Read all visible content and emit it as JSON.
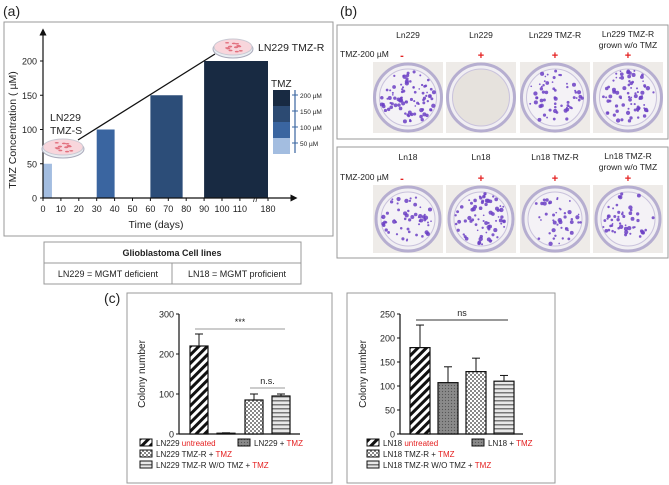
{
  "panel_labels": {
    "a": "(a)",
    "b": "(b)",
    "c": "(c)"
  },
  "chart_data": [
    {
      "type": "bar",
      "title": "",
      "xlabel": "Time (days)",
      "ylabel": "TMZ Concentration ( µM)",
      "x_ticks": [
        "0",
        "10",
        "20",
        "30",
        "40",
        "50",
        "60",
        "70",
        "80",
        "90",
        "100",
        "110",
        "180"
      ],
      "y_ticks": [
        "0",
        "50",
        "100",
        "150",
        "200"
      ],
      "ylim": [
        0,
        220
      ],
      "bars": [
        {
          "x_start": 0,
          "x_end": 5,
          "value": 50,
          "color": "#a3bde0"
        },
        {
          "x_start": 30,
          "x_end": 40,
          "value": 100,
          "color": "#3a65a0"
        },
        {
          "x_start": 60,
          "x_end": 78,
          "value": 150,
          "color": "#2c4d78"
        },
        {
          "x_start": 90,
          "x_end": 180,
          "value": 200,
          "color": "#182a42"
        }
      ],
      "annotations": {
        "start_line1": "LN229",
        "start_line2": "TMZ-S",
        "end": "LN229 TMZ-R",
        "axis_break": "//"
      },
      "legend": {
        "title": "TMZ",
        "placement": "right",
        "entries": [
          {
            "label": "200 µM",
            "color": "#182a42"
          },
          {
            "label": "150 µM",
            "color": "#2c4a72"
          },
          {
            "label": "100 µM",
            "color": "#3a65a0"
          },
          {
            "label": "50 µM",
            "color": "#a3bde0"
          }
        ]
      }
    },
    {
      "type": "bar",
      "title": "",
      "xlabel": "",
      "ylabel": "Colony number",
      "ylim": [
        0,
        300
      ],
      "y_ticks": [
        "0",
        "100",
        "200",
        "300"
      ],
      "series": [
        {
          "name": "LN229 untreated",
          "value": 220,
          "error": 30
        },
        {
          "name": "LN229 + TMZ",
          "value": 2,
          "error": 1
        },
        {
          "name": "LN229 TMZ-R + TMZ",
          "value": 85,
          "error": 15
        },
        {
          "name": "LN229 TMZ-R W/O TMZ + TMZ",
          "value": 95,
          "error": 5
        }
      ],
      "significance": [
        {
          "label": "***",
          "from": 0,
          "to": 3
        },
        {
          "label": "n.s.",
          "from": 2,
          "to": 3
        }
      ],
      "legend": [
        {
          "black": "LN229 ",
          "red": "untreated"
        },
        {
          "black": "LN229 + ",
          "red": "TMZ"
        },
        {
          "black": "LN229 TMZ-R + ",
          "red": "TMZ"
        },
        {
          "black": "LN229 TMZ-R W/O TMZ + ",
          "red": "TMZ"
        }
      ]
    },
    {
      "type": "bar",
      "title": "",
      "xlabel": "",
      "ylabel": "Colony number",
      "ylim": [
        0,
        250
      ],
      "y_ticks": [
        "0",
        "50",
        "100",
        "150",
        "200",
        "250"
      ],
      "series": [
        {
          "name": "LN18 untreated",
          "value": 180,
          "error": 47
        },
        {
          "name": "LN18 + TMZ",
          "value": 107,
          "error": 33
        },
        {
          "name": "LN18 TMZ-R + TMZ",
          "value": 130,
          "error": 28
        },
        {
          "name": "LN18 TMZ-R W/O TMZ + TMZ",
          "value": 110,
          "error": 12
        }
      ],
      "significance": [
        {
          "label": "ns",
          "from": 0,
          "to": 3
        }
      ],
      "legend": [
        {
          "black": "LN18 ",
          "red": "untreated"
        },
        {
          "black": "LN18 + ",
          "red": "TMZ"
        },
        {
          "black": "LN18 TMZ-R + ",
          "red": "TMZ"
        },
        {
          "black": "LN18 TMZ-R W/O TMZ + ",
          "red": "TMZ"
        }
      ]
    }
  ],
  "table": {
    "header": "Glioblastoma Cell lines",
    "cells": [
      "LN229 = MGMT deficient",
      "LN18 = MGMT proficient"
    ]
  },
  "panel_b": {
    "treatment_label": "TMZ-200 µM",
    "rows": [
      {
        "columns": [
          {
            "line1": "Ln229",
            "line2": "",
            "sign": "-"
          },
          {
            "line1": "Ln229",
            "line2": "",
            "sign": "+"
          },
          {
            "line1": "Ln229 TMZ-R",
            "line2": "",
            "sign": "+"
          },
          {
            "line1": "Ln229 TMZ-R",
            "line2": "grown w/o TMZ",
            "sign": "+"
          }
        ]
      },
      {
        "columns": [
          {
            "line1": "Ln18",
            "line2": "",
            "sign": "-"
          },
          {
            "line1": "Ln18",
            "line2": "",
            "sign": "+"
          },
          {
            "line1": "Ln18  TMZ-R",
            "line2": "",
            "sign": "+"
          },
          {
            "line1": "Ln18 TMZ-R",
            "line2": "grown w/o TMZ",
            "sign": "+"
          }
        ]
      }
    ]
  }
}
